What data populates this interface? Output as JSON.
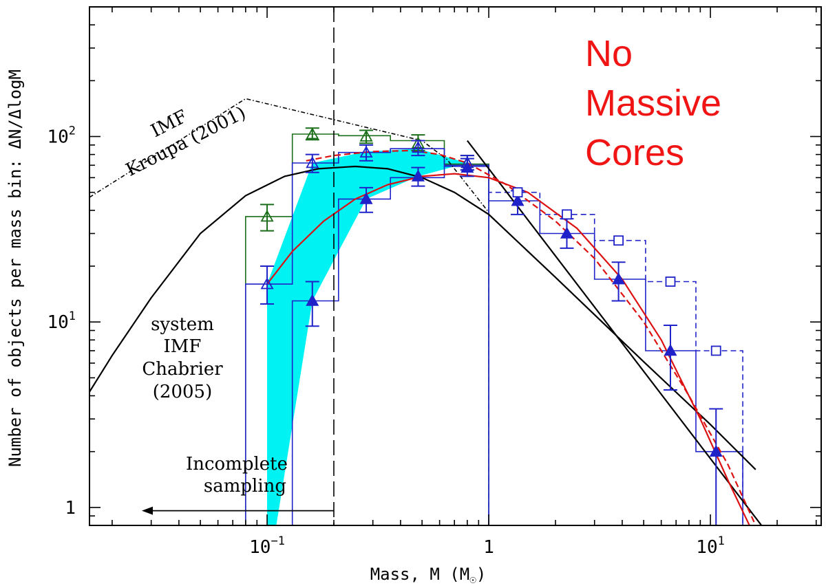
{
  "chart_data": {
    "type": "line",
    "xlabel": "Mass, M (M",
    "xlabel_sym": "☉",
    "xlabel_end": ")",
    "ylabel": "Number of objects per mass bin: ΔN/ΔlogM",
    "xscale": "log",
    "yscale": "log",
    "xlim": [
      0.0158,
      31.6
    ],
    "ylim": [
      0.8,
      500
    ],
    "x_ticks": [
      {
        "value": 0.1,
        "base": "10",
        "exp": "−1"
      },
      {
        "value": 1,
        "base": "1",
        "exp": ""
      },
      {
        "value": 10,
        "base": "10",
        "exp": "1"
      }
    ],
    "y_ticks": [
      {
        "value": 1,
        "base": "1",
        "exp": ""
      },
      {
        "value": 10,
        "base": "10",
        "exp": "1"
      },
      {
        "value": 100,
        "base": "10",
        "exp": "2"
      }
    ],
    "annotations": {
      "kroupa": [
        "IMF",
        "Kroupa (2001)"
      ],
      "chabrier": [
        "system",
        "IMF",
        "Chabrier",
        "(2005)"
      ],
      "incomplete": [
        "Incomplete",
        "sampling"
      ],
      "no_massive": [
        "No",
        "Massive",
        "Cores"
      ]
    },
    "colors": {
      "green": "#1a6e1a",
      "blue": "#1f22c8",
      "red": "#dd1111",
      "cyan": "#00f2f2",
      "black": "#000000",
      "annotation_red": "#f01414"
    },
    "completeness_limit_x": 0.2,
    "series": [
      {
        "style": "green open triangles with error bars",
        "points": [
          {
            "x": 0.1,
            "y": 37,
            "err": [
              31,
              43
            ]
          },
          {
            "x": 0.16,
            "y": 103,
            "err": [
              96,
              111
            ]
          },
          {
            "x": 0.28,
            "y": 100,
            "err": [
              92,
              108
            ]
          },
          {
            "x": 0.48,
            "y": 92,
            "err": [
              84,
              102
            ]
          },
          {
            "x": 0.8,
            "y": 72,
            "err": [
              66,
              79
            ]
          }
        ],
        "histogram": [
          [
            0.08,
            0.13,
            37
          ],
          [
            0.13,
            0.21,
            103
          ],
          [
            0.21,
            0.36,
            101
          ],
          [
            0.36,
            0.63,
            95
          ],
          [
            0.63,
            1.0,
            71
          ]
        ]
      },
      {
        "style": "blue open triangles with error bars",
        "points": [
          {
            "x": 0.1,
            "y": 16,
            "err": [
              12.5,
              20
            ]
          },
          {
            "x": 0.16,
            "y": 72,
            "err": [
              64,
              80
            ]
          },
          {
            "x": 0.28,
            "y": 82,
            "err": [
              74,
              90
            ]
          },
          {
            "x": 0.48,
            "y": 87,
            "err": [
              79,
              95
            ]
          },
          {
            "x": 0.8,
            "y": 72,
            "err": [
              66,
              79
            ]
          }
        ],
        "histogram": [
          [
            0.08,
            0.13,
            16
          ],
          [
            0.13,
            0.21,
            72
          ],
          [
            0.21,
            0.36,
            82
          ],
          [
            0.36,
            0.63,
            86
          ],
          [
            0.63,
            1.0,
            70
          ]
        ]
      },
      {
        "style": "blue filled triangles with error bars",
        "points": [
          {
            "x": 0.16,
            "y": 13,
            "err": [
              9.5,
              16.5
            ]
          },
          {
            "x": 0.28,
            "y": 46,
            "err": [
              39,
              53
            ]
          },
          {
            "x": 0.48,
            "y": 61,
            "err": [
              54,
              68
            ]
          },
          {
            "x": 0.8,
            "y": 68,
            "err": [
              61,
              76
            ]
          },
          {
            "x": 1.35,
            "y": 45,
            "err": [
              38,
              51
            ]
          },
          {
            "x": 2.25,
            "y": 30,
            "err": [
              25,
              36
            ]
          },
          {
            "x": 3.85,
            "y": 17,
            "err": [
              13,
              21
            ]
          },
          {
            "x": 6.6,
            "y": 7,
            "err": [
              4.3,
              9.6
            ]
          },
          {
            "x": 10.6,
            "y": 2,
            "err": [
              0.8,
              3.4
            ]
          }
        ],
        "histogram": [
          [
            0.13,
            0.21,
            13
          ],
          [
            0.21,
            0.36,
            46
          ],
          [
            0.36,
            0.63,
            60
          ],
          [
            0.63,
            1.0,
            69
          ],
          [
            1.0,
            1.7,
            45
          ],
          [
            1.7,
            3.0,
            30
          ],
          [
            3.0,
            5.1,
            17
          ],
          [
            5.1,
            8.6,
            7
          ],
          [
            8.6,
            14.0,
            2
          ]
        ]
      },
      {
        "style": "blue open squares, dashed histogram",
        "points": [
          {
            "x": 1.35,
            "y": 50
          },
          {
            "x": 2.25,
            "y": 38
          },
          {
            "x": 3.85,
            "y": 27.5
          },
          {
            "x": 6.6,
            "y": 16.5
          },
          {
            "x": 10.6,
            "y": 7
          }
        ],
        "histogram": [
          [
            1.0,
            1.7,
            50
          ],
          [
            1.7,
            3.0,
            38
          ],
          [
            3.0,
            5.1,
            27.5
          ],
          [
            5.1,
            8.6,
            16.5
          ],
          [
            8.6,
            14.0,
            7
          ]
        ]
      },
      {
        "style": "Kroupa (2001) IMF, dash-dot black",
        "points": [
          {
            "x": 0.0158,
            "y": 47
          },
          {
            "x": 0.08,
            "y": 160
          },
          {
            "x": 0.5,
            "y": 95
          },
          {
            "x": 0.65,
            "y": 75
          },
          {
            "x": 1.0,
            "y": 39
          }
        ]
      },
      {
        "style": "Chabrier (2005) system IMF, solid black",
        "points": [
          {
            "x": 0.0158,
            "y": 4.2
          },
          {
            "x": 0.02,
            "y": 6.6
          },
          {
            "x": 0.03,
            "y": 13.5
          },
          {
            "x": 0.05,
            "y": 30
          },
          {
            "x": 0.08,
            "y": 48
          },
          {
            "x": 0.12,
            "y": 61
          },
          {
            "x": 0.17,
            "y": 67
          },
          {
            "x": 0.25,
            "y": 69
          },
          {
            "x": 0.35,
            "y": 67
          },
          {
            "x": 0.5,
            "y": 60
          },
          {
            "x": 0.7,
            "y": 50
          },
          {
            "x": 1.0,
            "y": 38
          },
          {
            "x": 2.0,
            "y": 17.4
          },
          {
            "x": 5.0,
            "y": 6.1
          },
          {
            "x": 10.0,
            "y": 2.8
          },
          {
            "x": 16.0,
            "y": 1.6
          }
        ]
      },
      {
        "style": "power-law fit, solid black",
        "points": [
          {
            "x": 0.8,
            "y": 95
          },
          {
            "x": 17,
            "y": 0.8
          }
        ]
      },
      {
        "style": "log-normal fit, solid red",
        "points": [
          {
            "x": 0.1,
            "y": 16
          },
          {
            "x": 0.13,
            "y": 24
          },
          {
            "x": 0.18,
            "y": 35
          },
          {
            "x": 0.25,
            "y": 46
          },
          {
            "x": 0.35,
            "y": 55
          },
          {
            "x": 0.5,
            "y": 61
          },
          {
            "x": 0.7,
            "y": 63
          },
          {
            "x": 1.0,
            "y": 60
          },
          {
            "x": 1.5,
            "y": 50
          },
          {
            "x": 2.5,
            "y": 32
          },
          {
            "x": 4.0,
            "y": 17
          },
          {
            "x": 6.0,
            "y": 8
          },
          {
            "x": 9.0,
            "y": 3
          },
          {
            "x": 12.0,
            "y": 1.4
          },
          {
            "x": 15.0,
            "y": 0.8
          }
        ]
      },
      {
        "style": "log-normal fit, dashed red",
        "points": [
          {
            "x": 0.15,
            "y": 74
          },
          {
            "x": 0.2,
            "y": 79
          },
          {
            "x": 0.3,
            "y": 83
          },
          {
            "x": 0.45,
            "y": 84
          },
          {
            "x": 0.6,
            "y": 80
          },
          {
            "x": 0.8,
            "y": 72
          },
          {
            "x": 1.2,
            "y": 55
          },
          {
            "x": 2.0,
            "y": 35
          },
          {
            "x": 3.0,
            "y": 22
          },
          {
            "x": 5.0,
            "y": 10
          },
          {
            "x": 8.0,
            "y": 4
          },
          {
            "x": 12.0,
            "y": 1.7
          },
          {
            "x": 16.0,
            "y": 0.8
          }
        ]
      },
      {
        "style": "cyan shaded band",
        "polygon": [
          {
            "x": 0.1,
            "y": 0.8
          },
          {
            "x": 0.1,
            "y": 16
          },
          {
            "x": 0.16,
            "y": 72
          },
          {
            "x": 0.28,
            "y": 83
          },
          {
            "x": 0.48,
            "y": 86
          },
          {
            "x": 0.8,
            "y": 72
          },
          {
            "x": 0.48,
            "y": 61
          },
          {
            "x": 0.28,
            "y": 46
          },
          {
            "x": 0.16,
            "y": 13
          },
          {
            "x": 0.11,
            "y": 0.8
          }
        ]
      }
    ]
  }
}
